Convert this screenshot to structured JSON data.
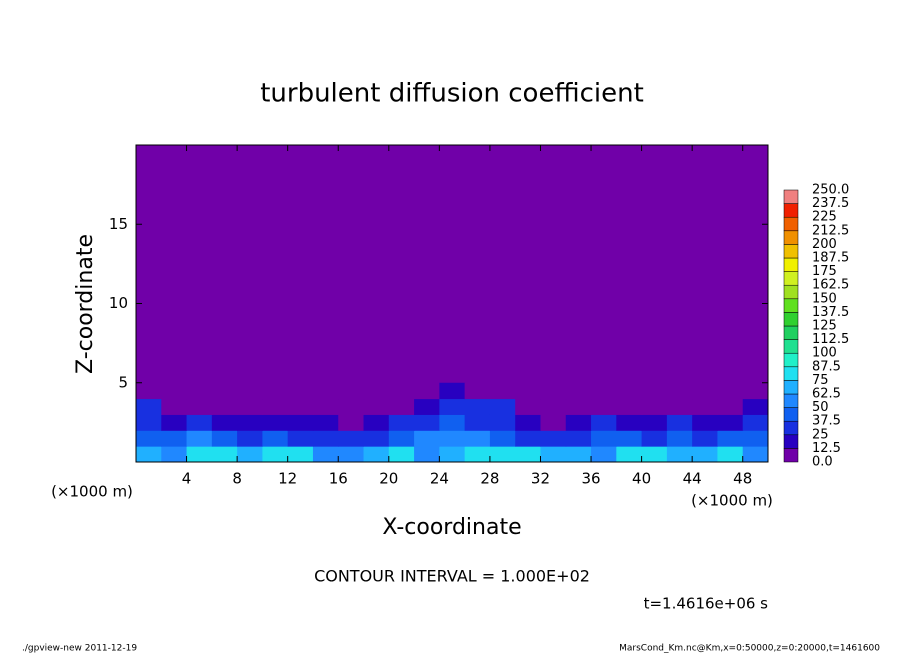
{
  "chart_data": {
    "type": "contourf",
    "title": "turbulent diffusion coefficient",
    "xlabel": "X-coordinate",
    "ylabel": "Z-coordinate",
    "xunit": "(×1000 m)",
    "yunit": "(×1000 m)",
    "xlim": [
      0,
      50
    ],
    "ylim": [
      0,
      20
    ],
    "xticks": [
      4,
      8,
      12,
      16,
      20,
      24,
      28,
      32,
      36,
      40,
      44,
      48
    ],
    "yticks": [
      5,
      10,
      15
    ],
    "x": [
      1,
      3,
      5,
      7,
      9,
      11,
      13,
      15,
      17,
      19,
      21,
      23,
      25,
      27,
      29,
      31,
      33,
      35,
      37,
      39,
      41,
      43,
      45,
      47,
      49
    ],
    "y": [
      0.5,
      1.5,
      2.5,
      3.5,
      4.5
    ],
    "z": [
      [
        70,
        55,
        75,
        80,
        70,
        75,
        80,
        60,
        55,
        70,
        75,
        60,
        70,
        80,
        75,
        80,
        70,
        65,
        60,
        75,
        80,
        70,
        65,
        75,
        60
      ],
      [
        45,
        40,
        55,
        40,
        30,
        45,
        35,
        25,
        30,
        35,
        40,
        50,
        55,
        60,
        45,
        35,
        30,
        25,
        40,
        45,
        35,
        40,
        30,
        45,
        40
      ],
      [
        35,
        15,
        30,
        20,
        20,
        15,
        20,
        15,
        10,
        20,
        25,
        30,
        45,
        35,
        30,
        20,
        10,
        15,
        25,
        20,
        20,
        25,
        15,
        20,
        30
      ],
      [
        30,
        5,
        10,
        5,
        5,
        10,
        5,
        0,
        0,
        5,
        10,
        20,
        35,
        25,
        25,
        5,
        0,
        0,
        0,
        5,
        0,
        5,
        0,
        5,
        15
      ],
      [
        0,
        0,
        0,
        0,
        0,
        0,
        0,
        0,
        0,
        0,
        0,
        0,
        15,
        5,
        10,
        0,
        0,
        0,
        0,
        0,
        0,
        0,
        0,
        0,
        0
      ]
    ],
    "levels": [
      {
        "value": 0,
        "label": "0.0"
      },
      12.5,
      25,
      37.5,
      50,
      62.5,
      75,
      87.5,
      100,
      112.5,
      125,
      137.5,
      150,
      162.5,
      175,
      187.5,
      200,
      212.5,
      225,
      237.5,
      {
        "value": 250,
        "label": "250.0"
      }
    ],
    "colors": [
      "#7000a8",
      "#2800c0",
      "#1830e0",
      "#1060f0",
      "#2088ff",
      "#20b0ff",
      "#20e0f0",
      "#20f0c8",
      "#20e090",
      "#20d060",
      "#30d030",
      "#60e020",
      "#a0e020",
      "#d0f020",
      "#f0f000",
      "#f0c000",
      "#f09000",
      "#f06000",
      "#f02000",
      "#f08080"
    ],
    "contour_interval": "CONTOUR INTERVAL = 1.000E+02",
    "time_label": "t=1.4616e+06 s",
    "footer_left": "./gpview-new   2011-12-19",
    "footer_right": "MarsCond_Km.nc@Km,x=0:50000,z=0:20000,t=1461600"
  }
}
